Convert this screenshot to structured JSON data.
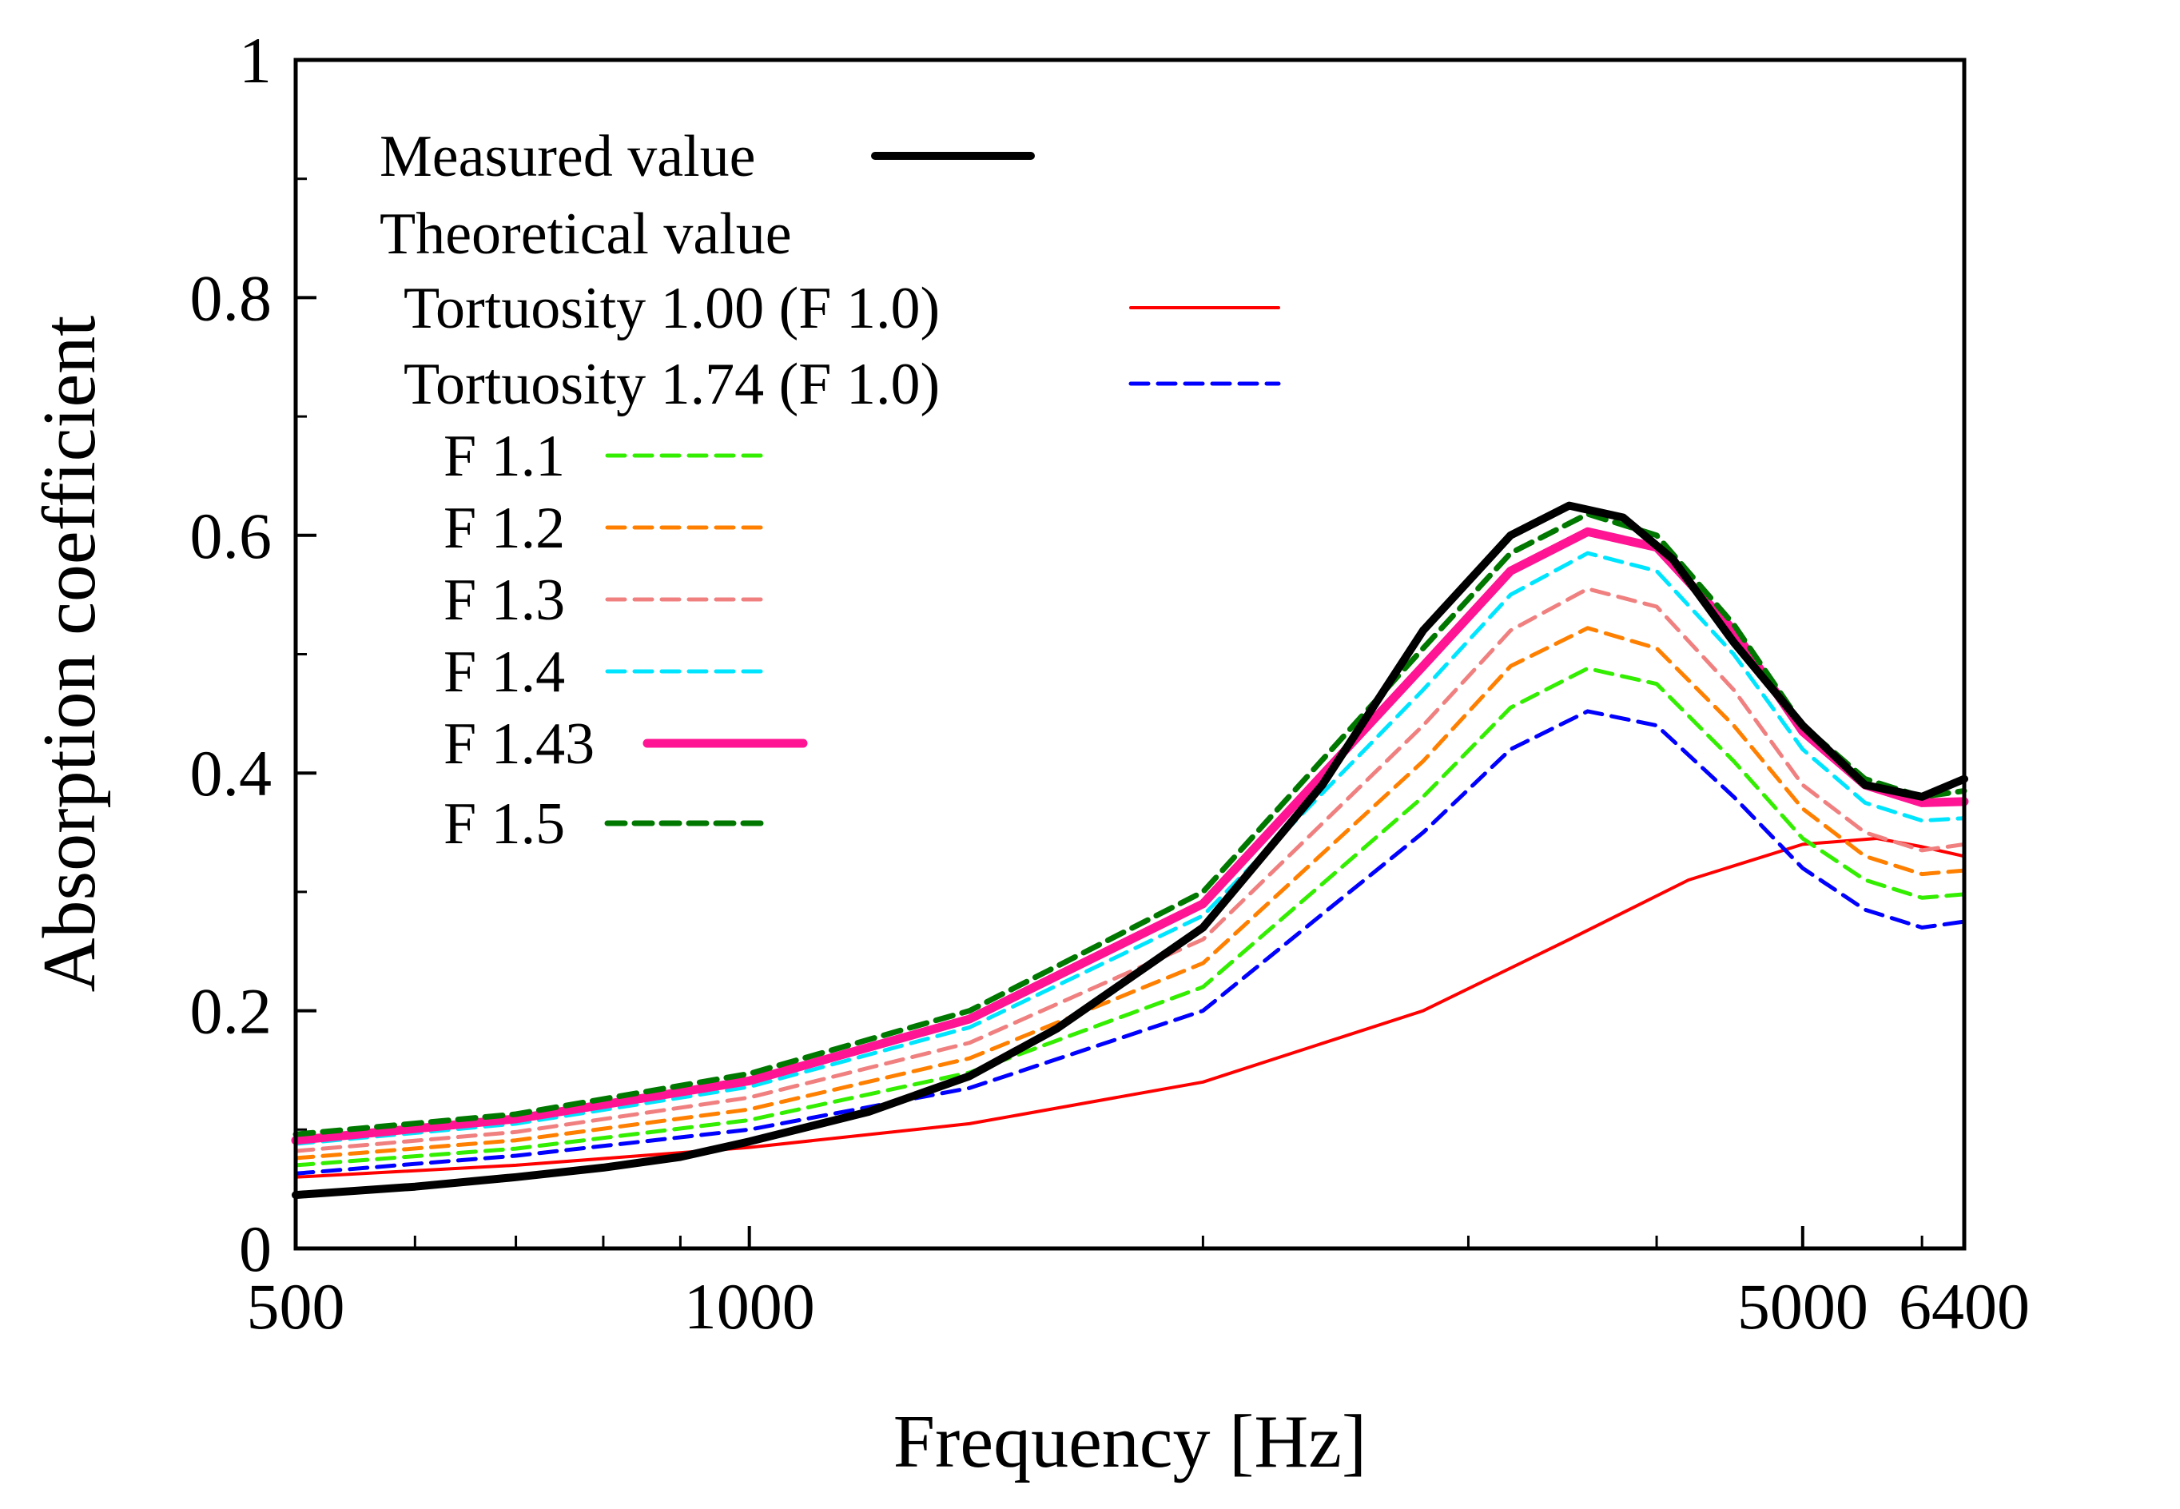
{
  "chart_data": {
    "type": "line",
    "title": "",
    "xlabel": "Frequency [Hz]",
    "ylabel": "Absorption coefficient",
    "xscale": "log",
    "xlim": [
      500,
      6400
    ],
    "ylim": [
      0,
      1
    ],
    "x_major_ticks": [
      500,
      1000,
      5000,
      6400
    ],
    "x_tick_labels": [
      "500",
      "1000",
      "5000",
      "6400"
    ],
    "x_minor_ticks": [
      600,
      700,
      800,
      900,
      2000,
      3000,
      4000,
      6000
    ],
    "y_major_ticks": [
      0,
      0.2,
      0.4,
      0.6,
      0.8,
      1
    ],
    "y_tick_labels": [
      "0",
      "0.2",
      "0.4",
      "0.6",
      "0.8",
      "1"
    ],
    "y_minor_ticks": [
      0.1,
      0.3,
      0.5,
      0.7,
      0.9
    ],
    "grid": false,
    "legend_position": "top-left",
    "legend_heading": "Theoretical value",
    "series": [
      {
        "name": "Measured value",
        "color": "#000000",
        "style": "solid",
        "width": 10,
        "x": [
          500,
          600,
          700,
          800,
          900,
          1000,
          1200,
          1400,
          1600,
          2000,
          2400,
          2800,
          3200,
          3500,
          3800,
          4100,
          4500,
          5000,
          5500,
          6000,
          6400
        ],
        "y": [
          0.045,
          0.052,
          0.06,
          0.068,
          0.077,
          0.09,
          0.115,
          0.145,
          0.185,
          0.27,
          0.39,
          0.52,
          0.6,
          0.625,
          0.615,
          0.58,
          0.51,
          0.44,
          0.39,
          0.38,
          0.395
        ]
      },
      {
        "name": "Tortuosity 1.00 (F 1.0)",
        "color": "#ff0000",
        "style": "solid",
        "width": 4,
        "x": [
          500,
          700,
          1000,
          1400,
          2000,
          2800,
          3500,
          4200,
          5000,
          5600,
          6000,
          6400
        ],
        "y": [
          0.06,
          0.07,
          0.085,
          0.105,
          0.14,
          0.2,
          0.26,
          0.31,
          0.34,
          0.345,
          0.338,
          0.33
        ]
      },
      {
        "name": "Tortuosity 1.74 (F 1.0)",
        "color": "#0000ff",
        "style": "dashed",
        "width": 5,
        "x": [
          500,
          700,
          1000,
          1400,
          2000,
          2800,
          3200,
          3600,
          4000,
          4500,
          5000,
          5500,
          6000,
          6400
        ],
        "y": [
          0.063,
          0.078,
          0.1,
          0.135,
          0.2,
          0.35,
          0.42,
          0.452,
          0.44,
          0.38,
          0.32,
          0.285,
          0.27,
          0.275
        ]
      },
      {
        "name": "F 1.1",
        "color": "#33ee00",
        "style": "dashed",
        "width": 5,
        "x": [
          500,
          700,
          1000,
          1400,
          2000,
          2800,
          3200,
          3600,
          4000,
          4500,
          5000,
          5500,
          6000,
          6400
        ],
        "y": [
          0.07,
          0.084,
          0.108,
          0.148,
          0.22,
          0.38,
          0.455,
          0.488,
          0.475,
          0.41,
          0.345,
          0.31,
          0.295,
          0.298
        ]
      },
      {
        "name": "F 1.2",
        "color": "#ff8000",
        "style": "dashed",
        "width": 5,
        "x": [
          500,
          700,
          1000,
          1400,
          2000,
          2800,
          3200,
          3600,
          4000,
          4500,
          5000,
          5500,
          6000,
          6400
        ],
        "y": [
          0.076,
          0.091,
          0.117,
          0.16,
          0.24,
          0.41,
          0.49,
          0.522,
          0.505,
          0.44,
          0.37,
          0.33,
          0.315,
          0.318
        ]
      },
      {
        "name": "F 1.3",
        "color": "#f08080",
        "style": "dashed",
        "width": 5,
        "x": [
          500,
          700,
          1000,
          1400,
          2000,
          2800,
          3200,
          3600,
          4000,
          4500,
          5000,
          5500,
          6000,
          6400
        ],
        "y": [
          0.082,
          0.098,
          0.127,
          0.173,
          0.26,
          0.44,
          0.52,
          0.555,
          0.54,
          0.47,
          0.39,
          0.35,
          0.335,
          0.34
        ]
      },
      {
        "name": "F 1.4",
        "color": "#00e5ff",
        "style": "dashed",
        "width": 5,
        "x": [
          500,
          700,
          1000,
          1400,
          2000,
          2800,
          3200,
          3600,
          4000,
          4500,
          5000,
          5500,
          6000,
          6400
        ],
        "y": [
          0.088,
          0.105,
          0.136,
          0.186,
          0.28,
          0.47,
          0.55,
          0.585,
          0.57,
          0.5,
          0.42,
          0.375,
          0.36,
          0.362
        ]
      },
      {
        "name": "F 1.43",
        "color": "#ff1493",
        "style": "solid",
        "width": 11,
        "x": [
          500,
          700,
          1000,
          1400,
          2000,
          2800,
          3200,
          3600,
          4000,
          4500,
          5000,
          5500,
          6000,
          6400
        ],
        "y": [
          0.091,
          0.109,
          0.141,
          0.193,
          0.29,
          0.49,
          0.57,
          0.603,
          0.59,
          0.52,
          0.435,
          0.39,
          0.375,
          0.376
        ]
      },
      {
        "name": "F 1.5",
        "color": "#007800",
        "style": "dashed",
        "width": 7,
        "x": [
          500,
          700,
          1000,
          1400,
          2000,
          2800,
          3200,
          3600,
          4000,
          4500,
          5000,
          5500,
          6000,
          6400
        ],
        "y": [
          0.096,
          0.113,
          0.147,
          0.2,
          0.3,
          0.505,
          0.585,
          0.618,
          0.6,
          0.525,
          0.44,
          0.395,
          0.38,
          0.385
        ]
      }
    ]
  }
}
